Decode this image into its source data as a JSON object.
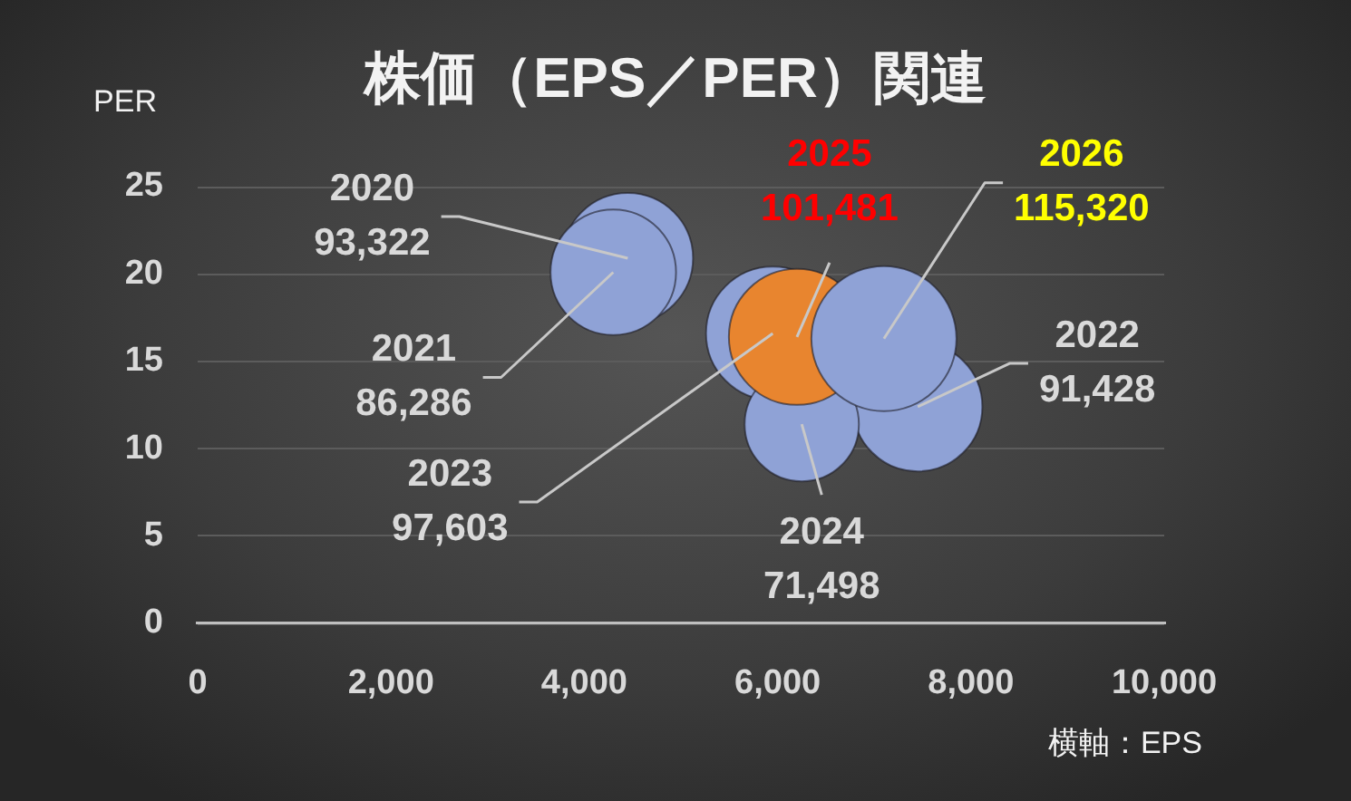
{
  "chart_data": {
    "type": "bubble",
    "title": "株価（EPS／PER）関連",
    "xlabel": "横軸：EPS",
    "ylabel": "PER",
    "series": [
      {
        "name": "2020",
        "color": "#8fa2d6",
        "x": [
          4450
        ],
        "values": [
          20.9
        ],
        "sizes": [
          93322
        ],
        "value_labels": [
          "93,322"
        ]
      },
      {
        "name": "2021",
        "color": "#8fa2d6",
        "x": [
          4300
        ],
        "values": [
          20.1
        ],
        "sizes": [
          86286
        ],
        "value_labels": [
          "86,286"
        ]
      },
      {
        "name": "2022",
        "color": "#8fa2d6",
        "x": [
          7450
        ],
        "values": [
          12.4
        ],
        "sizes": [
          91428
        ],
        "value_labels": [
          "91,428"
        ]
      },
      {
        "name": "2023",
        "color": "#8fa2d6",
        "x": [
          5950
        ],
        "values": [
          16.6
        ],
        "sizes": [
          97603
        ],
        "value_labels": [
          "97,603"
        ]
      },
      {
        "name": "2024",
        "color": "#8fa2d6",
        "x": [
          6250
        ],
        "values": [
          11.4
        ],
        "sizes": [
          71498
        ],
        "value_labels": [
          "71,498"
        ]
      },
      {
        "name": "2025",
        "color": "#e8852f",
        "x": [
          6200
        ],
        "values": [
          16.4
        ],
        "sizes": [
          101481
        ],
        "value_labels": [
          "101,481"
        ]
      },
      {
        "name": "2026",
        "color": "#8fa2d6",
        "x": [
          7100
        ],
        "values": [
          16.3
        ],
        "sizes": [
          115320
        ],
        "value_labels": [
          "115,320"
        ]
      }
    ],
    "xlim": [
      0,
      10000
    ],
    "xticks": [
      0,
      {
        "value": 2000,
        "label": "2,000"
      },
      {
        "value": 4000,
        "label": "4,000"
      },
      {
        "value": 6000,
        "label": "6,000"
      },
      {
        "value": 8000,
        "label": "8,000"
      },
      {
        "value": 10000,
        "label": "10,000"
      }
    ],
    "ylim": [
      0,
      25
    ],
    "yticks": [
      0,
      5,
      10,
      15,
      20,
      25
    ],
    "grid": "y"
  }
}
